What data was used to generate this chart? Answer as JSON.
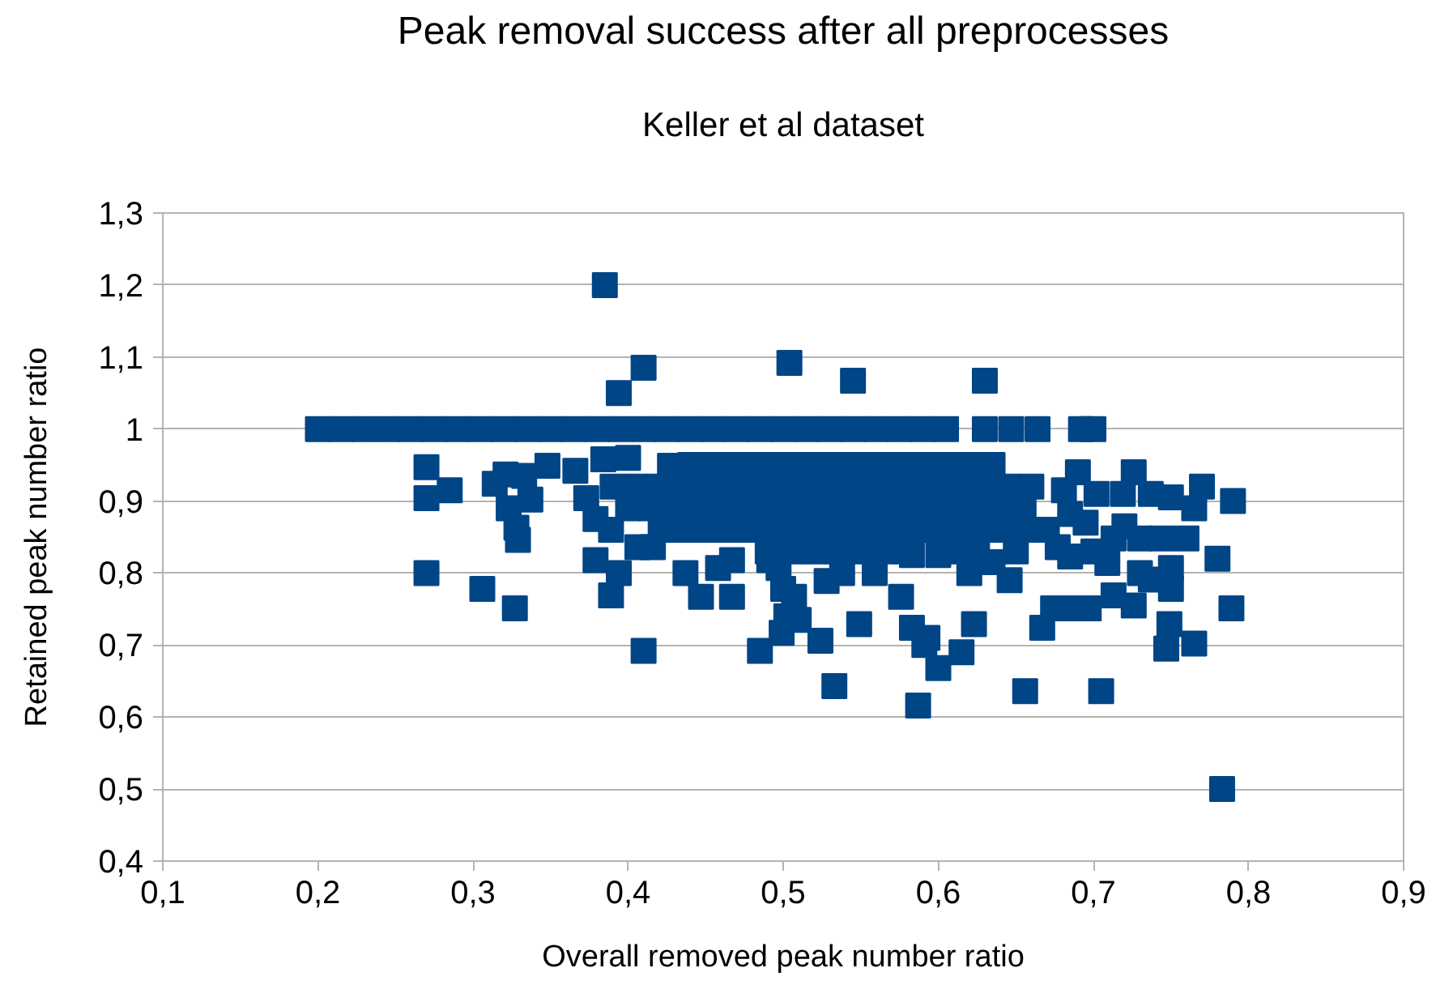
{
  "chart_data": {
    "type": "scatter",
    "title": "Peak removal success after all preprocesses",
    "subtitle": "Keller et al dataset",
    "xlabel": "Overall removed peak number ratio",
    "ylabel": "Retained peak number ratio",
    "x": [
      0.2,
      0.215,
      0.23,
      0.245,
      0.26,
      0.275,
      0.29,
      0.305,
      0.32,
      0.335,
      0.35,
      0.365,
      0.38,
      0.395,
      0.41,
      0.425,
      0.44,
      0.455,
      0.47,
      0.485,
      0.5,
      0.515,
      0.53,
      0.545,
      0.56,
      0.575,
      0.59,
      0.605,
      0.63,
      0.647,
      0.664,
      0.692,
      0.7,
      0.385,
      0.394,
      0.41,
      0.504,
      0.545,
      0.63,
      0.27,
      0.27,
      0.285,
      0.27,
      0.306,
      0.327,
      0.41,
      0.321,
      0.333,
      0.314,
      0.337,
      0.323,
      0.328,
      0.329,
      0.348,
      0.366,
      0.373,
      0.384,
      0.4,
      0.379,
      0.389,
      0.406,
      0.427,
      0.421,
      0.379,
      0.394,
      0.389,
      0.44,
      0.455,
      0.47,
      0.485,
      0.5,
      0.515,
      0.53,
      0.545,
      0.56,
      0.575,
      0.59,
      0.605,
      0.62,
      0.635,
      0.39,
      0.405,
      0.42,
      0.435,
      0.45,
      0.465,
      0.48,
      0.495,
      0.51,
      0.525,
      0.54,
      0.555,
      0.57,
      0.585,
      0.6,
      0.615,
      0.63,
      0.645,
      0.66,
      0.4,
      0.415,
      0.43,
      0.445,
      0.46,
      0.475,
      0.49,
      0.505,
      0.52,
      0.535,
      0.55,
      0.565,
      0.58,
      0.595,
      0.61,
      0.625,
      0.64,
      0.655,
      0.43,
      0.445,
      0.46,
      0.475,
      0.49,
      0.505,
      0.52,
      0.535,
      0.55,
      0.565,
      0.58,
      0.595,
      0.61,
      0.625,
      0.64,
      0.655,
      0.67,
      0.49,
      0.505,
      0.52,
      0.535,
      0.55,
      0.565,
      0.58,
      0.61,
      0.625,
      0.69,
      0.726,
      0.681,
      0.702,
      0.719,
      0.737,
      0.75,
      0.77,
      0.765,
      0.79,
      0.685,
      0.713,
      0.73,
      0.744,
      0.76,
      0.709,
      0.73,
      0.75,
      0.78,
      0.677,
      0.685,
      0.646,
      0.635,
      0.65,
      0.695,
      0.7,
      0.72,
      0.713,
      0.726,
      0.737,
      0.75,
      0.674,
      0.685,
      0.697,
      0.789,
      0.749,
      0.747,
      0.765,
      0.667,
      0.623,
      0.656,
      0.705,
      0.783,
      0.437,
      0.447,
      0.467,
      0.467,
      0.458,
      0.491,
      0.5,
      0.502,
      0.499,
      0.51,
      0.485,
      0.524,
      0.533,
      0.549,
      0.559,
      0.576,
      0.583,
      0.593,
      0.6,
      0.587,
      0.615,
      0.591,
      0.497,
      0.528,
      0.538,
      0.583,
      0.6,
      0.507,
      0.416,
      0.62
    ],
    "values": [
      1,
      1,
      1,
      1,
      1,
      1,
      1,
      1,
      1,
      1,
      1,
      1,
      1,
      1,
      1,
      1,
      1,
      1,
      1,
      1,
      1,
      1,
      1,
      1,
      1,
      1,
      1,
      1,
      1,
      1,
      1,
      1,
      1,
      1.2,
      1.05,
      1.085,
      1.092,
      1.067,
      1.067,
      0.947,
      0.904,
      0.915,
      0.8,
      0.778,
      0.751,
      0.692,
      0.937,
      0.935,
      0.924,
      0.902,
      0.89,
      0.863,
      0.846,
      0.949,
      0.942,
      0.904,
      0.958,
      0.96,
      0.875,
      0.86,
      0.836,
      0.949,
      0.868,
      0.818,
      0.8,
      0.769,
      0.95,
      0.95,
      0.95,
      0.95,
      0.95,
      0.95,
      0.95,
      0.95,
      0.95,
      0.95,
      0.95,
      0.95,
      0.95,
      0.95,
      0.92,
      0.92,
      0.92,
      0.92,
      0.92,
      0.92,
      0.92,
      0.92,
      0.92,
      0.92,
      0.92,
      0.92,
      0.92,
      0.92,
      0.92,
      0.92,
      0.92,
      0.92,
      0.92,
      0.89,
      0.89,
      0.89,
      0.89,
      0.89,
      0.89,
      0.89,
      0.89,
      0.89,
      0.89,
      0.89,
      0.89,
      0.89,
      0.89,
      0.89,
      0.89,
      0.89,
      0.89,
      0.86,
      0.86,
      0.86,
      0.86,
      0.86,
      0.86,
      0.86,
      0.86,
      0.86,
      0.86,
      0.86,
      0.86,
      0.86,
      0.86,
      0.86,
      0.86,
      0.86,
      0.83,
      0.83,
      0.83,
      0.83,
      0.83,
      0.83,
      0.83,
      0.83,
      0.83,
      0.94,
      0.94,
      0.915,
      0.91,
      0.91,
      0.91,
      0.905,
      0.92,
      0.89,
      0.9,
      0.882,
      0.848,
      0.848,
      0.848,
      0.848,
      0.814,
      0.8,
      0.807,
      0.82,
      0.836,
      0.823,
      0.79,
      0.815,
      0.83,
      0.87,
      0.83,
      0.865,
      0.769,
      0.755,
      0.791,
      0.778,
      0.751,
      0.751,
      0.751,
      0.751,
      0.729,
      0.695,
      0.702,
      0.724,
      0.729,
      0.636,
      0.636,
      0.5,
      0.8,
      0.767,
      0.767,
      0.818,
      0.807,
      0.818,
      0.778,
      0.74,
      0.717,
      0.735,
      0.692,
      0.706,
      0.643,
      0.729,
      0.8,
      0.767,
      0.724,
      0.71,
      0.668,
      0.616,
      0.69,
      0.7,
      0.807,
      0.789,
      0.8,
      0.825,
      0.825,
      0.767,
      0.836,
      0.8
    ],
    "color": "#004586",
    "marker": "square",
    "grid": "y",
    "xlim": [
      0.1,
      0.9
    ],
    "ylim": [
      0.4,
      1.3
    ],
    "xticks": [
      {
        "value": 0.1,
        "label": "0,1"
      },
      {
        "value": 0.2,
        "label": "0,2"
      },
      {
        "value": 0.3,
        "label": "0,3"
      },
      {
        "value": 0.4,
        "label": "0,4"
      },
      {
        "value": 0.5,
        "label": "0,5"
      },
      {
        "value": 0.6,
        "label": "0,6"
      },
      {
        "value": 0.7,
        "label": "0,7"
      },
      {
        "value": 0.8,
        "label": "0,8"
      },
      {
        "value": 0.9,
        "label": "0,9"
      }
    ],
    "yticks": [
      {
        "value": 0.4,
        "label": "0,4"
      },
      {
        "value": 0.5,
        "label": "0,5"
      },
      {
        "value": 0.6,
        "label": "0,6"
      },
      {
        "value": 0.7,
        "label": "0,7"
      },
      {
        "value": 0.8,
        "label": "0,8"
      },
      {
        "value": 0.9,
        "label": "0,9"
      },
      1,
      {
        "value": 1.1,
        "label": "1,1"
      },
      {
        "value": 1.2,
        "label": "1,2"
      },
      {
        "value": 1.3,
        "label": "1,3"
      }
    ]
  }
}
